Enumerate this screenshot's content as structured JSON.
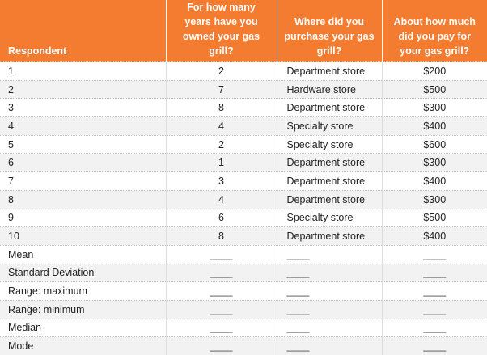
{
  "table": {
    "headers": [
      "Respondent",
      "For how many years have you owned your gas grill?",
      "Where did you purchase your gas grill?",
      "About how much did you pay for your gas grill?"
    ],
    "rows": [
      [
        "1",
        "2",
        "Department store",
        "$200"
      ],
      [
        "2",
        "7",
        "Hardware store",
        "$500"
      ],
      [
        "3",
        "8",
        "Department store",
        "$300"
      ],
      [
        "4",
        "4",
        "Specialty store",
        "$400"
      ],
      [
        "5",
        "2",
        "Specialty store",
        "$600"
      ],
      [
        "6",
        "1",
        "Department store",
        "$300"
      ],
      [
        "7",
        "3",
        "Department store",
        "$400"
      ],
      [
        "8",
        "4",
        "Department store",
        "$300"
      ],
      [
        "9",
        "6",
        "Specialty store",
        "$500"
      ],
      [
        "10",
        "8",
        "Department store",
        "$400"
      ],
      [
        "Mean",
        "____",
        "____",
        "____"
      ],
      [
        "Standard Deviation",
        "____",
        "____",
        "____"
      ],
      [
        "Range: maximum",
        "____",
        "____",
        "____"
      ],
      [
        "Range: minimum",
        "____",
        "____",
        "____"
      ],
      [
        "Median",
        "____",
        "____",
        "____"
      ],
      [
        "Mode",
        "____",
        "____",
        "____"
      ]
    ]
  }
}
